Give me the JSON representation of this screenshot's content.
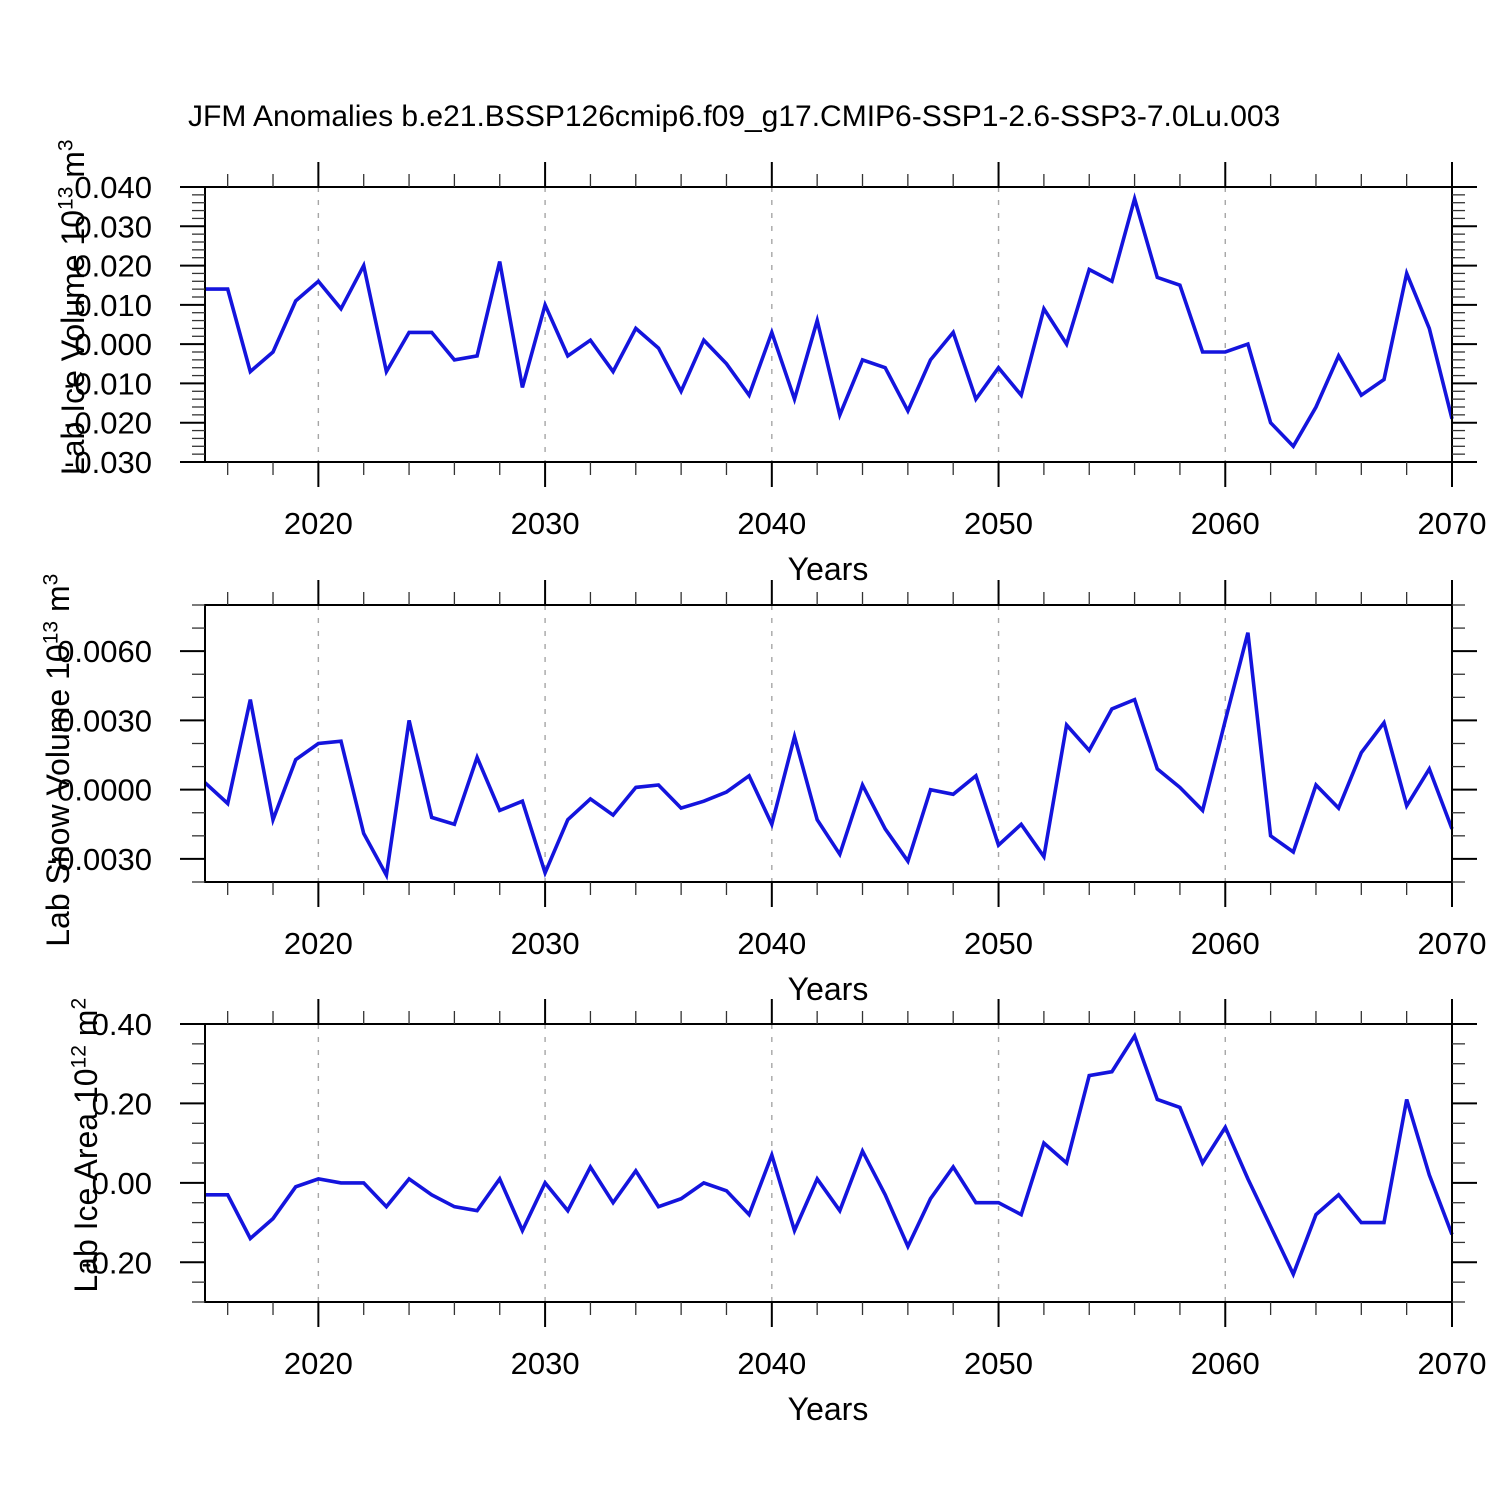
{
  "title": "JFM Anomalies b.e21.BSSP126cmip6.f09_g17.CMIP6-SSP1-2.6-SSP3-7.0Lu.003",
  "colors": {
    "line": "#1414dd",
    "grid": "#a6a6a6",
    "axis": "#000000",
    "minor_tick": "#333333",
    "background": "#ffffff"
  },
  "years": [
    2015,
    2016,
    2017,
    2018,
    2019,
    2020,
    2021,
    2022,
    2023,
    2024,
    2025,
    2026,
    2027,
    2028,
    2029,
    2030,
    2031,
    2032,
    2033,
    2034,
    2035,
    2036,
    2037,
    2038,
    2039,
    2040,
    2041,
    2042,
    2043,
    2044,
    2045,
    2046,
    2047,
    2048,
    2049,
    2050,
    2051,
    2052,
    2053,
    2054,
    2055,
    2056,
    2057,
    2058,
    2059,
    2060,
    2061,
    2062,
    2063,
    2064,
    2065,
    2066,
    2067,
    2068,
    2069,
    2070
  ],
  "chart_data": [
    {
      "type": "line",
      "name": "lab-ice-volume",
      "xlabel": "Years",
      "ylabel": {
        "text": "Lab Ice Volume 10",
        "exp": "13",
        "unit": " m",
        "unit_exp": "3"
      },
      "ylim": [
        -0.03,
        0.04
      ],
      "yticks": [
        {
          "v": 0.04,
          "label": "0.040"
        },
        {
          "v": 0.03,
          "label": "0.030"
        },
        {
          "v": 0.02,
          "label": "0.020"
        },
        {
          "v": 0.01,
          "label": "0.010"
        },
        {
          "v": 0.0,
          "label": "0.000"
        },
        {
          "v": -0.01,
          "label": "-0.010"
        },
        {
          "v": -0.02,
          "label": "-0.020"
        },
        {
          "v": -0.03,
          "label": "-0.030"
        }
      ],
      "y_minor_step": 0.002,
      "x_major_ticks": [
        2020,
        2030,
        2040,
        2050,
        2060,
        2070
      ],
      "x_tick_labels": [
        "2020",
        "2030",
        "2040",
        "2050",
        "2060",
        "2070"
      ],
      "x_minor_step": 2,
      "gridlines": [
        2020,
        2030,
        2040,
        2050,
        2060
      ],
      "values": [
        0.014,
        0.014,
        -0.007,
        -0.002,
        0.011,
        0.016,
        0.009,
        0.02,
        -0.007,
        0.003,
        0.003,
        -0.004,
        -0.003,
        0.021,
        -0.011,
        0.01,
        -0.003,
        0.001,
        -0.007,
        0.004,
        -0.001,
        -0.012,
        0.001,
        -0.005,
        -0.013,
        0.003,
        -0.014,
        0.006,
        -0.018,
        -0.004,
        -0.006,
        -0.017,
        -0.004,
        0.003,
        -0.014,
        -0.006,
        -0.013,
        0.009,
        0.0,
        0.019,
        0.016,
        0.037,
        0.017,
        0.015,
        -0.002,
        -0.002,
        0.0,
        -0.02,
        -0.026,
        -0.016,
        -0.003,
        -0.013,
        -0.009,
        0.018,
        0.004,
        -0.019
      ]
    },
    {
      "type": "line",
      "name": "lab-snow-volume",
      "xlabel": "Years",
      "ylabel": {
        "text": "Lab Snow Volume 10",
        "exp": "13",
        "unit": " m",
        "unit_exp": "3"
      },
      "ylim": [
        -0.004,
        0.008
      ],
      "yticks": [
        {
          "v": 0.006,
          "label": "0.0060"
        },
        {
          "v": 0.003,
          "label": "0.0030"
        },
        {
          "v": 0.0,
          "label": "0.0000"
        },
        {
          "v": -0.003,
          "label": "-0.0030"
        }
      ],
      "y_minor_step": 0.001,
      "x_major_ticks": [
        2020,
        2030,
        2040,
        2050,
        2060,
        2070
      ],
      "x_tick_labels": [
        "2020",
        "2030",
        "2040",
        "2050",
        "2060",
        "2070"
      ],
      "x_minor_step": 2,
      "gridlines": [
        2020,
        2030,
        2040,
        2050,
        2060
      ],
      "values": [
        0.0003,
        -0.0006,
        0.0039,
        -0.0013,
        0.0013,
        0.002,
        0.0021,
        -0.0019,
        -0.0037,
        0.003,
        -0.0012,
        -0.0015,
        0.0014,
        -0.0009,
        -0.0005,
        -0.0036,
        -0.0013,
        -0.0004,
        -0.0011,
        0.0001,
        0.0002,
        -0.0008,
        -0.0005,
        -0.0001,
        0.0006,
        -0.0015,
        0.0023,
        -0.0013,
        -0.0028,
        0.0002,
        -0.0017,
        -0.0031,
        0.0,
        -0.0002,
        0.0006,
        -0.0024,
        -0.0015,
        -0.0029,
        0.0028,
        0.0017,
        0.0035,
        0.0039,
        0.0009,
        0.0001,
        -0.0009,
        0.003,
        0.0068,
        -0.002,
        -0.0027,
        0.0002,
        -0.0008,
        0.0016,
        0.0029,
        -0.0007,
        0.0009,
        -0.0017
      ]
    },
    {
      "type": "line",
      "name": "lab-ice-area",
      "xlabel": "Years",
      "ylabel": {
        "text": "Lab Ice Area 10",
        "exp": "12",
        "unit": " m",
        "unit_exp": "2"
      },
      "ylim": [
        -0.3,
        0.4
      ],
      "yticks": [
        {
          "v": 0.4,
          "label": "0.40"
        },
        {
          "v": 0.2,
          "label": "0.20"
        },
        {
          "v": 0.0,
          "label": "0.00"
        },
        {
          "v": -0.2,
          "label": "-0.20"
        }
      ],
      "y_minor_step": 0.05,
      "x_major_ticks": [
        2020,
        2030,
        2040,
        2050,
        2060,
        2070
      ],
      "x_tick_labels": [
        "2020",
        "2030",
        "2040",
        "2050",
        "2060",
        "2070"
      ],
      "x_minor_step": 2,
      "gridlines": [
        2020,
        2030,
        2040,
        2050,
        2060
      ],
      "values": [
        -0.03,
        -0.03,
        -0.14,
        -0.09,
        -0.01,
        0.01,
        0.0,
        0.0,
        -0.06,
        0.01,
        -0.03,
        -0.06,
        -0.07,
        0.01,
        -0.12,
        0.0,
        -0.07,
        0.04,
        -0.05,
        0.03,
        -0.06,
        -0.04,
        0.0,
        -0.02,
        -0.08,
        0.07,
        -0.12,
        0.01,
        -0.07,
        0.08,
        -0.03,
        -0.16,
        -0.04,
        0.04,
        -0.05,
        -0.05,
        -0.08,
        0.1,
        0.05,
        0.27,
        0.28,
        0.37,
        0.21,
        0.19,
        0.05,
        0.14,
        0.01,
        -0.11,
        -0.23,
        -0.08,
        -0.03,
        -0.1,
        -0.1,
        0.21,
        0.02,
        -0.13
      ]
    }
  ]
}
